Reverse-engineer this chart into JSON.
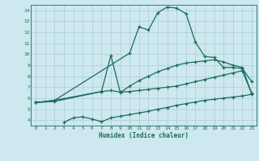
{
  "xlabel": "Humidex (Indice chaleur)",
  "bg_color": "#cde8ee",
  "grid_color": "#aacdd5",
  "line_color": "#1a6b5e",
  "xlim": [
    -0.5,
    23.5
  ],
  "ylim": [
    3.5,
    14.5
  ],
  "xticks": [
    0,
    1,
    2,
    3,
    4,
    5,
    6,
    7,
    8,
    9,
    10,
    11,
    12,
    13,
    14,
    15,
    16,
    17,
    18,
    19,
    20,
    21,
    22,
    23
  ],
  "yticks": [
    4,
    5,
    6,
    7,
    8,
    9,
    10,
    11,
    12,
    13,
    14
  ],
  "line1_x": [
    0,
    2,
    10,
    11,
    12,
    13,
    14,
    15,
    16,
    17,
    18,
    19,
    20,
    21,
    22,
    23
  ],
  "line1_y": [
    5.6,
    5.8,
    10.1,
    12.5,
    12.2,
    13.8,
    14.3,
    14.2,
    13.7,
    11.1,
    9.8,
    9.7,
    8.8,
    8.8,
    8.7,
    7.5
  ],
  "line2_x": [
    0,
    2,
    7,
    8,
    9,
    10,
    11,
    12,
    13,
    14,
    15,
    16,
    17,
    18,
    19,
    20,
    21,
    22,
    23
  ],
  "line2_y": [
    5.6,
    5.8,
    6.6,
    9.9,
    6.5,
    7.1,
    7.6,
    8.0,
    8.4,
    8.7,
    9.0,
    9.2,
    9.3,
    9.4,
    9.5,
    9.3,
    9.0,
    8.8,
    6.4
  ],
  "line3_x": [
    0,
    2,
    7,
    8,
    9,
    10,
    11,
    12,
    13,
    14,
    15,
    16,
    17,
    18,
    19,
    20,
    21,
    22,
    23
  ],
  "line3_y": [
    5.6,
    5.7,
    6.6,
    6.7,
    6.55,
    6.6,
    6.7,
    6.8,
    6.9,
    7.0,
    7.1,
    7.3,
    7.5,
    7.7,
    7.9,
    8.1,
    8.3,
    8.5,
    6.4
  ],
  "line4_x": [
    3,
    4,
    5,
    6,
    7,
    8,
    9,
    10,
    11,
    12,
    13,
    14,
    15,
    16,
    17,
    18,
    19,
    20,
    21,
    22,
    23
  ],
  "line4_y": [
    3.8,
    4.2,
    4.3,
    4.1,
    3.85,
    4.2,
    4.35,
    4.5,
    4.65,
    4.8,
    5.0,
    5.15,
    5.35,
    5.5,
    5.65,
    5.8,
    5.9,
    6.0,
    6.1,
    6.2,
    6.35
  ]
}
